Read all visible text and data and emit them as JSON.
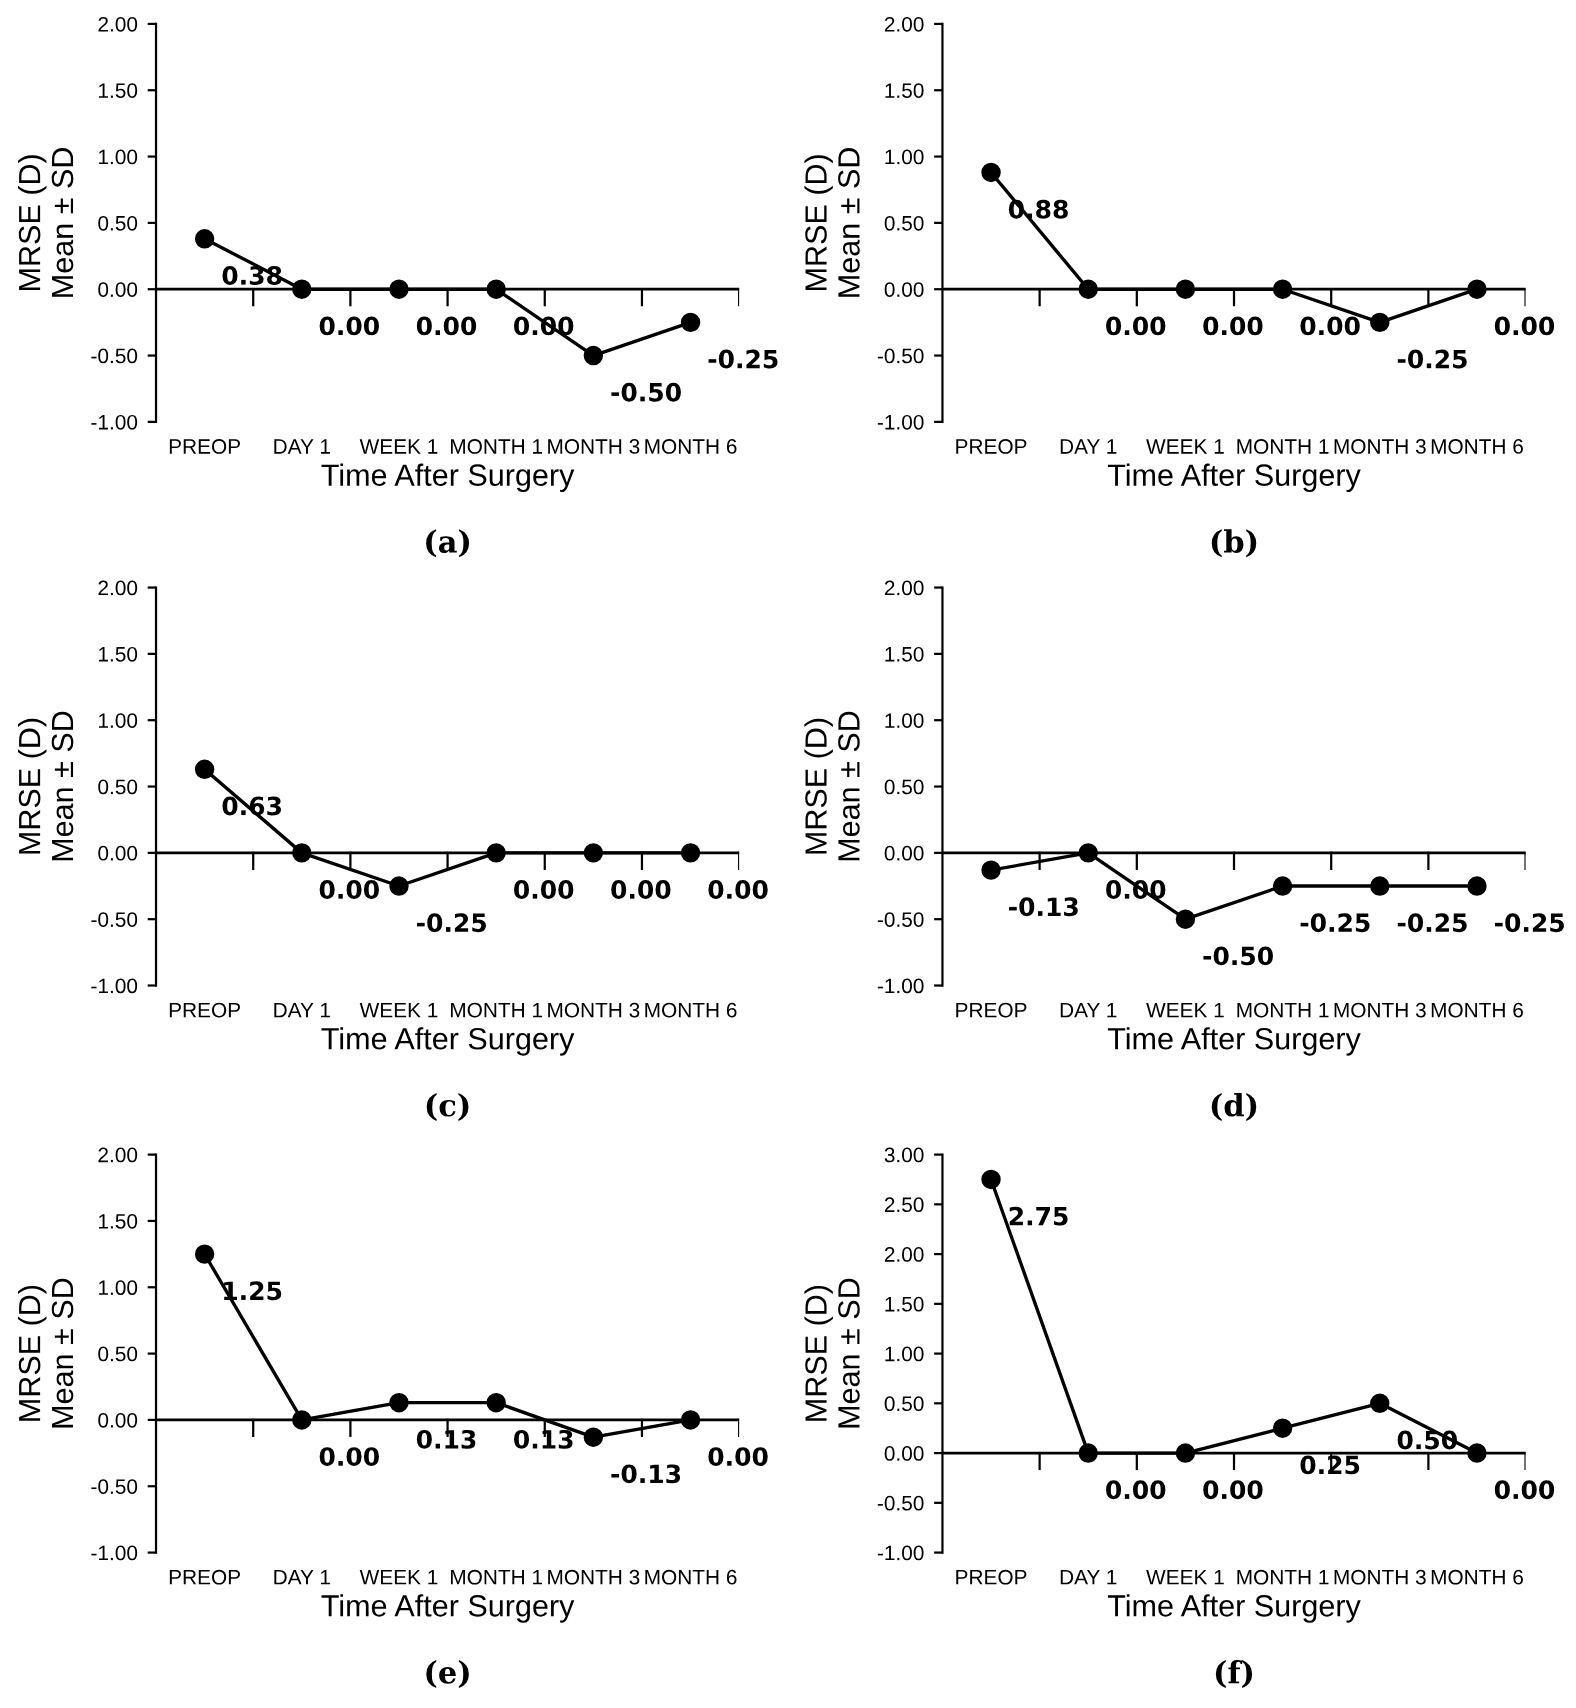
{
  "chart_data": [
    {
      "type": "line",
      "categories": [
        "PREOP",
        "DAY 1",
        "WEEK 1",
        "MONTH 1",
        "MONTH 3",
        "MONTH 6"
      ],
      "series": [
        {
          "color": "#000000",
          "values": [
            0.38,
            0.0,
            0.0,
            0.0,
            -0.5,
            -0.25
          ],
          "value_labels": [
            "0.38",
            "0.00",
            "0.00",
            "0.00",
            "-0.50",
            "-0.25"
          ]
        }
      ],
      "marker": "circle",
      "line_style": "solid",
      "xlabel": "Time After Surgery",
      "ylabel": "MRSE (D)\nMean ± SD",
      "ylim": [
        -1,
        2
      ],
      "yticks": [
        {
          "value": -1,
          "label": "-1.00"
        },
        {
          "value": -0.5,
          "label": "-0.50"
        },
        {
          "value": 0,
          "label": "0.00"
        },
        {
          "value": 0.5,
          "label": "0.50"
        },
        {
          "value": 1,
          "label": "1.00"
        },
        {
          "value": 1.5,
          "label": "1.50"
        },
        {
          "value": 2,
          "label": "2.00"
        }
      ],
      "annotations": [
        "(a)"
      ]
    },
    {
      "type": "line",
      "categories": [
        "PREOP",
        "DAY 1",
        "WEEK 1",
        "MONTH 1",
        "MONTH 3",
        "MONTH 6"
      ],
      "series": [
        {
          "color": "#000000",
          "values": [
            0.88,
            0.0,
            0.0,
            0.0,
            -0.25,
            0.0
          ],
          "value_labels": [
            "0.88",
            "0.00",
            "0.00",
            "0.00",
            "-0.25",
            "0.00"
          ]
        }
      ],
      "marker": "circle",
      "line_style": "solid",
      "xlabel": "Time After Surgery",
      "ylabel": "MRSE (D)\nMean ± SD",
      "ylim": [
        -1,
        2
      ],
      "yticks": [
        {
          "value": -1,
          "label": "-1.00"
        },
        {
          "value": -0.5,
          "label": "-0.50"
        },
        {
          "value": 0,
          "label": "0.00"
        },
        {
          "value": 0.5,
          "label": "0.50"
        },
        {
          "value": 1,
          "label": "1.00"
        },
        {
          "value": 1.5,
          "label": "1.50"
        },
        {
          "value": 2,
          "label": "2.00"
        }
      ],
      "annotations": [
        "(b)"
      ]
    },
    {
      "type": "line",
      "categories": [
        "PREOP",
        "DAY 1",
        "WEEK 1",
        "MONTH 1",
        "MONTH 3",
        "MONTH 6"
      ],
      "series": [
        {
          "color": "#000000",
          "values": [
            0.63,
            0.0,
            -0.25,
            0.0,
            0.0,
            0.0
          ],
          "value_labels": [
            "0.63",
            "0.00",
            "-0.25",
            "0.00",
            "0.00",
            "0.00"
          ]
        }
      ],
      "marker": "circle",
      "line_style": "solid",
      "xlabel": "Time After Surgery",
      "ylabel": "MRSE (D)\nMean ± SD",
      "ylim": [
        -1,
        2
      ],
      "yticks": [
        {
          "value": -1,
          "label": "-1.00"
        },
        {
          "value": -0.5,
          "label": "-0.50"
        },
        {
          "value": 0,
          "label": "0.00"
        },
        {
          "value": 0.5,
          "label": "0.50"
        },
        {
          "value": 1,
          "label": "1.00"
        },
        {
          "value": 1.5,
          "label": "1.50"
        },
        {
          "value": 2,
          "label": "2.00"
        }
      ],
      "annotations": [
        "(c)"
      ]
    },
    {
      "type": "line",
      "categories": [
        "PREOP",
        "DAY 1",
        "WEEK 1",
        "MONTH 1",
        "MONTH 3",
        "MONTH 6"
      ],
      "series": [
        {
          "color": "#000000",
          "values": [
            -0.13,
            0.0,
            -0.5,
            -0.25,
            -0.25,
            -0.25
          ],
          "value_labels": [
            "-0.13",
            "0.00",
            "-0.50",
            "-0.25",
            "-0.25",
            "-0.25"
          ]
        }
      ],
      "marker": "circle",
      "line_style": "solid",
      "xlabel": "Time After Surgery",
      "ylabel": "MRSE (D)\nMean ± SD",
      "ylim": [
        -1,
        2
      ],
      "yticks": [
        {
          "value": -1,
          "label": "-1.00"
        },
        {
          "value": -0.5,
          "label": "-0.50"
        },
        {
          "value": 0,
          "label": "0.00"
        },
        {
          "value": 0.5,
          "label": "0.50"
        },
        {
          "value": 1,
          "label": "1.00"
        },
        {
          "value": 1.5,
          "label": "1.50"
        },
        {
          "value": 2,
          "label": "2.00"
        }
      ],
      "annotations": [
        "(d)"
      ]
    },
    {
      "type": "line",
      "categories": [
        "PREOP",
        "DAY 1",
        "WEEK 1",
        "MONTH 1",
        "MONTH 3",
        "MONTH 6"
      ],
      "series": [
        {
          "color": "#000000",
          "values": [
            1.25,
            0.0,
            0.13,
            0.13,
            -0.13,
            0.0
          ],
          "value_labels": [
            "1.25",
            "0.00",
            "0.13",
            "0.13",
            "-0.13",
            "0.00"
          ]
        }
      ],
      "marker": "circle",
      "line_style": "solid",
      "xlabel": "Time After Surgery",
      "ylabel": "MRSE (D)\nMean ± SD",
      "ylim": [
        -1,
        2
      ],
      "yticks": [
        {
          "value": -1,
          "label": "-1.00"
        },
        {
          "value": -0.5,
          "label": "-0.50"
        },
        {
          "value": 0,
          "label": "0.00"
        },
        {
          "value": 0.5,
          "label": "0.50"
        },
        {
          "value": 1,
          "label": "1.00"
        },
        {
          "value": 1.5,
          "label": "1.50"
        },
        {
          "value": 2,
          "label": "2.00"
        }
      ],
      "annotations": [
        "(e)"
      ]
    },
    {
      "type": "line",
      "categories": [
        "PREOP",
        "DAY 1",
        "WEEK 1",
        "MONTH 1",
        "MONTH 3",
        "MONTH 6"
      ],
      "series": [
        {
          "color": "#000000",
          "values": [
            2.75,
            0.0,
            0.0,
            0.25,
            0.5,
            0.0
          ],
          "value_labels": [
            "2.75",
            "0.00",
            "0.00",
            "0.25",
            "0.50",
            "0.00"
          ]
        }
      ],
      "marker": "circle",
      "line_style": "solid",
      "xlabel": "Time After Surgery",
      "ylabel": "MRSE (D)\nMean ± SD",
      "ylim": [
        -1,
        3
      ],
      "yticks": [
        {
          "value": -1,
          "label": "-1.00"
        },
        {
          "value": -0.5,
          "label": "-0.50"
        },
        {
          "value": 0,
          "label": "0.00"
        },
        {
          "value": 0.5,
          "label": "0.50"
        },
        {
          "value": 1,
          "label": "1.00"
        },
        {
          "value": 1.5,
          "label": "1.50"
        },
        {
          "value": 2,
          "label": "2.00"
        },
        {
          "value": 2.5,
          "label": "2.50"
        },
        {
          "value": 3,
          "label": "3.00"
        }
      ],
      "annotations": [
        "(f)"
      ]
    }
  ]
}
